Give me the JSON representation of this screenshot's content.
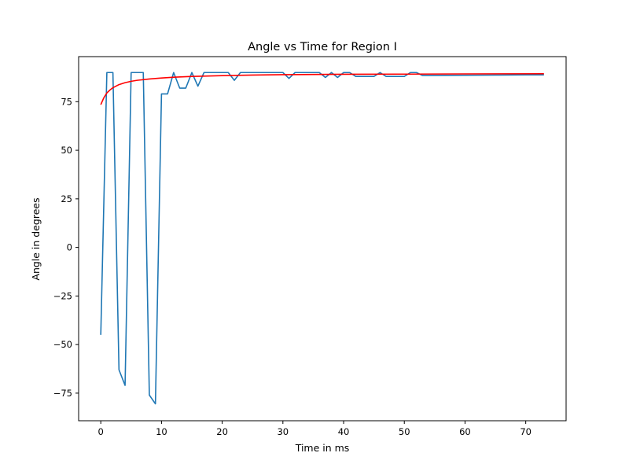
{
  "chart_data": {
    "type": "line",
    "title": "Angle vs Time for Region I",
    "xlabel": "Time in ms",
    "ylabel": "Angle in degrees",
    "xlim": [
      -3.65,
      76.65
    ],
    "ylim": [
      -89.2,
      98.2
    ],
    "x_ticks": [
      0,
      10,
      20,
      30,
      40,
      50,
      60,
      70
    ],
    "y_ticks": [
      -75,
      -50,
      -25,
      0,
      25,
      50,
      75
    ],
    "grid": false,
    "legend": "none",
    "series": [
      {
        "color": "#1f77b4",
        "points": [
          [
            0,
            -45
          ],
          [
            1,
            90
          ],
          [
            2,
            90
          ],
          [
            3,
            -63
          ],
          [
            4,
            -71
          ],
          [
            5,
            90
          ],
          [
            6,
            90
          ],
          [
            7,
            90
          ],
          [
            8,
            -76
          ],
          [
            9,
            -80.5
          ],
          [
            10,
            79
          ],
          [
            11,
            79
          ],
          [
            12,
            90
          ],
          [
            13,
            82
          ],
          [
            14,
            82
          ],
          [
            15,
            90
          ],
          [
            16,
            83
          ],
          [
            17,
            90
          ],
          [
            18,
            90
          ],
          [
            19,
            90
          ],
          [
            20,
            90
          ],
          [
            21,
            90
          ],
          [
            22,
            86
          ],
          [
            23,
            90
          ],
          [
            24,
            90
          ],
          [
            25,
            90
          ],
          [
            26,
            90
          ],
          [
            27,
            90
          ],
          [
            28,
            90
          ],
          [
            29,
            90
          ],
          [
            30,
            90
          ],
          [
            31,
            87
          ],
          [
            32,
            90
          ],
          [
            33,
            90
          ],
          [
            34,
            90
          ],
          [
            35,
            90
          ],
          [
            36,
            90
          ],
          [
            37,
            87.5
          ],
          [
            38,
            90
          ],
          [
            39,
            87.5
          ],
          [
            40,
            90
          ],
          [
            41,
            90
          ],
          [
            42,
            88
          ],
          [
            43,
            88
          ],
          [
            44,
            88
          ],
          [
            45,
            88
          ],
          [
            46,
            90
          ],
          [
            47,
            88
          ],
          [
            48,
            88
          ],
          [
            49,
            88
          ],
          [
            50,
            88
          ],
          [
            51,
            90
          ],
          [
            52,
            90
          ],
          [
            53,
            88.5
          ],
          [
            54,
            88.5
          ],
          [
            60,
            88.6
          ],
          [
            65,
            88.7
          ],
          [
            70,
            88.8
          ],
          [
            73,
            88.8
          ]
        ]
      },
      {
        "color": "#ff0000",
        "points": [
          [
            0,
            73.5
          ],
          [
            0.5,
            77
          ],
          [
            1,
            79.5
          ],
          [
            1.5,
            81
          ],
          [
            2,
            82.2
          ],
          [
            3,
            83.8
          ],
          [
            4,
            84.8
          ],
          [
            5,
            85.5
          ],
          [
            6,
            86
          ],
          [
            8,
            86.7
          ],
          [
            10,
            87.2
          ],
          [
            12,
            87.6
          ],
          [
            15,
            88
          ],
          [
            20,
            88.4
          ],
          [
            25,
            88.7
          ],
          [
            30,
            88.9
          ],
          [
            35,
            89
          ],
          [
            40,
            89.1
          ],
          [
            50,
            89.2
          ],
          [
            60,
            89.3
          ],
          [
            73,
            89.4
          ]
        ]
      }
    ]
  }
}
